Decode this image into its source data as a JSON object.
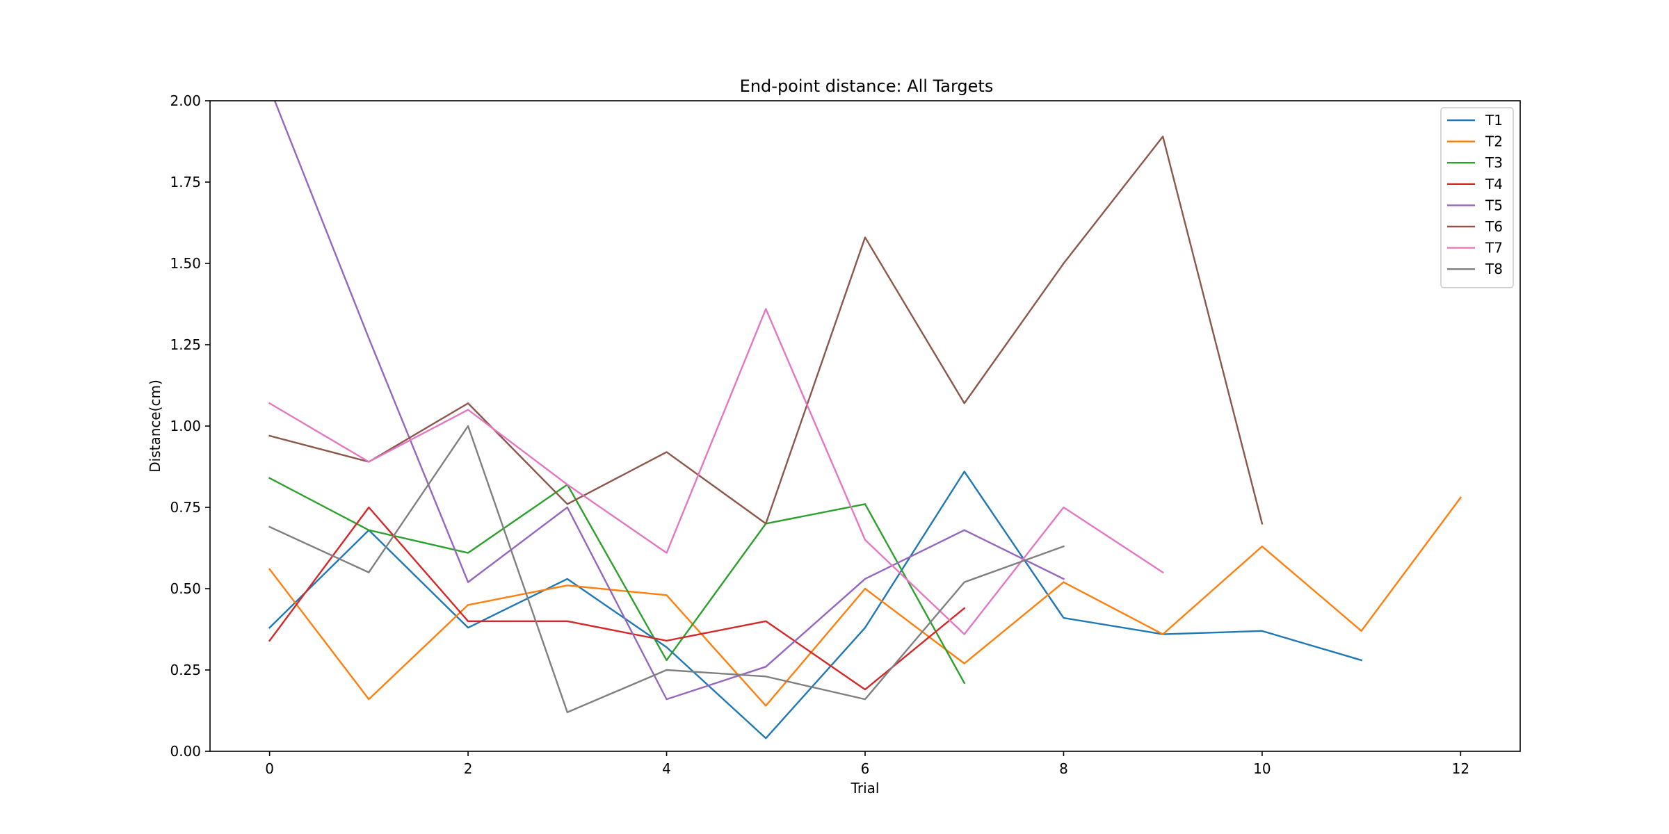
{
  "chart_data": {
    "type": "line",
    "title": "End-point distance: All Targets",
    "xlabel": "Trial",
    "ylabel": "Distance(cm)",
    "xlim": [
      -0.6,
      12.6
    ],
    "ylim": [
      0,
      2.0
    ],
    "xticks": [
      0,
      2,
      4,
      6,
      8,
      10,
      12
    ],
    "yticks": [
      0.0,
      0.25,
      0.5,
      0.75,
      1.0,
      1.25,
      1.5,
      1.75,
      2.0
    ],
    "xtick_labels": [
      "0",
      "2",
      "4",
      "6",
      "8",
      "10",
      "12"
    ],
    "ytick_labels": [
      "0.00",
      "0.25",
      "0.50",
      "0.75",
      "1.00",
      "1.25",
      "1.50",
      "1.75",
      "2.00"
    ],
    "grid": false,
    "legend_position": "top-right",
    "series": [
      {
        "name": "T1",
        "color": "#1f77b4",
        "x": [
          0,
          1,
          2,
          3,
          4,
          5,
          6,
          7,
          8,
          9,
          10,
          11
        ],
        "values": [
          0.38,
          0.68,
          0.38,
          0.53,
          0.32,
          0.04,
          0.38,
          0.86,
          0.41,
          0.36,
          0.37,
          0.28
        ]
      },
      {
        "name": "T2",
        "color": "#ff7f0e",
        "x": [
          0,
          1,
          2,
          3,
          4,
          5,
          6,
          7,
          8,
          9,
          10,
          11,
          12
        ],
        "values": [
          0.56,
          0.16,
          0.45,
          0.51,
          0.48,
          0.14,
          0.5,
          0.27,
          0.52,
          0.36,
          0.63,
          0.37,
          0.78
        ]
      },
      {
        "name": "T3",
        "color": "#2ca02c",
        "x": [
          0,
          1,
          2,
          3,
          4,
          5,
          6,
          7
        ],
        "values": [
          0.84,
          0.68,
          0.61,
          0.82,
          0.28,
          0.7,
          0.76,
          0.21
        ]
      },
      {
        "name": "T4",
        "color": "#d62728",
        "x": [
          0,
          1,
          2,
          3,
          4,
          5,
          6,
          7
        ],
        "values": [
          0.34,
          0.75,
          0.4,
          0.4,
          0.34,
          0.4,
          0.19,
          0.44
        ]
      },
      {
        "name": "T5",
        "color": "#9467bd",
        "x": [
          0,
          1,
          2,
          3,
          4,
          5,
          6,
          7,
          8
        ],
        "values": [
          2.04,
          1.27,
          0.52,
          0.75,
          0.16,
          0.26,
          0.53,
          0.68,
          0.53
        ]
      },
      {
        "name": "T6",
        "color": "#8c564b",
        "x": [
          0,
          1,
          2,
          3,
          4,
          5,
          6,
          7,
          8,
          9,
          10
        ],
        "values": [
          0.97,
          0.89,
          1.07,
          0.76,
          0.92,
          0.7,
          1.58,
          1.07,
          1.5,
          1.89,
          0.7
        ]
      },
      {
        "name": "T7",
        "color": "#e377c2",
        "x": [
          0,
          1,
          2,
          3,
          4,
          5,
          6,
          7,
          8,
          9
        ],
        "values": [
          1.07,
          0.89,
          1.05,
          0.82,
          0.61,
          1.36,
          0.65,
          0.36,
          0.75,
          0.55
        ]
      },
      {
        "name": "T8",
        "color": "#7f7f7f",
        "x": [
          0,
          1,
          2,
          3,
          4,
          5,
          6,
          7,
          8
        ],
        "values": [
          0.69,
          0.55,
          1.0,
          0.12,
          0.25,
          0.23,
          0.16,
          0.52,
          0.63
        ]
      }
    ]
  }
}
